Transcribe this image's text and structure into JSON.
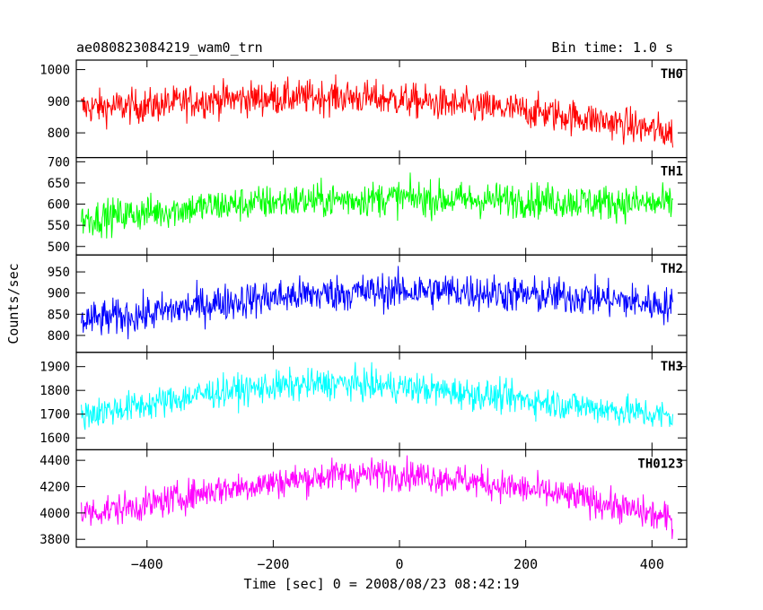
{
  "header": {
    "title": "ae080823084219_wam0_trn",
    "bin_time": "Bin time: 1.0 s"
  },
  "chart_data": {
    "type": "line",
    "title": "ae080823084219_wam0_trn",
    "subtitle": "Bin time: 1.0 s",
    "xlabel": "Time [sec] 0 = 2008/08/23 08:42:19",
    "ylabel": "Counts/sec",
    "xlim": [
      -512,
      455
    ],
    "x_ticks": [
      -400,
      -200,
      0,
      200,
      400
    ],
    "x_range_of_data": [
      -504,
      433
    ],
    "bin_time": 1.0,
    "grid": false,
    "legend": "none",
    "panels": [
      {
        "name": "TH0",
        "color": "#ff0000",
        "ylim": [
          722,
          1030
        ],
        "yticks": [
          800,
          900,
          1000
        ],
        "trend": {
          "x": [
            -500,
            -400,
            -300,
            -200,
            -100,
            0,
            100,
            200,
            300,
            430
          ],
          "y": [
            880,
            885,
            905,
            910,
            915,
            905,
            885,
            870,
            845,
            800
          ]
        },
        "noise_amplitude": 50
      },
      {
        "name": "TH1",
        "color": "#00ff00",
        "ylim": [
          480,
          710
        ],
        "yticks": [
          500,
          550,
          600,
          650,
          700
        ],
        "trend": {
          "x": [
            -500,
            -400,
            -300,
            -200,
            -100,
            0,
            100,
            200,
            300,
            430
          ],
          "y": [
            565,
            580,
            595,
            605,
            610,
            615,
            610,
            610,
            605,
            600
          ]
        },
        "noise_amplitude": 38
      },
      {
        "name": "TH2",
        "color": "#0000ff",
        "ylim": [
          760,
          990
        ],
        "yticks": [
          800,
          850,
          900,
          950
        ],
        "trend": {
          "x": [
            -500,
            -400,
            -300,
            -200,
            -100,
            0,
            100,
            200,
            300,
            430
          ],
          "y": [
            835,
            850,
            875,
            890,
            900,
            905,
            905,
            895,
            890,
            870
          ]
        },
        "noise_amplitude": 40
      },
      {
        "name": "TH3",
        "color": "#00ffff",
        "ylim": [
          1550,
          1960
        ],
        "yticks": [
          1600,
          1700,
          1800,
          1900
        ],
        "trend": {
          "x": [
            -500,
            -400,
            -300,
            -200,
            -100,
            0,
            100,
            200,
            300,
            430
          ],
          "y": [
            1700,
            1740,
            1790,
            1815,
            1830,
            1815,
            1790,
            1760,
            1730,
            1690
          ]
        },
        "noise_amplitude": 60
      },
      {
        "name": "TH0123",
        "color": "#ff00ff",
        "ylim": [
          3740,
          4480
        ],
        "yticks": [
          3800,
          4000,
          4200,
          4400
        ],
        "trend": {
          "x": [
            -500,
            -400,
            -300,
            -200,
            -100,
            0,
            100,
            200,
            300,
            430
          ],
          "y": [
            4000,
            4060,
            4170,
            4230,
            4290,
            4300,
            4250,
            4180,
            4100,
            3950
          ]
        },
        "noise_amplitude": 110
      }
    ]
  }
}
